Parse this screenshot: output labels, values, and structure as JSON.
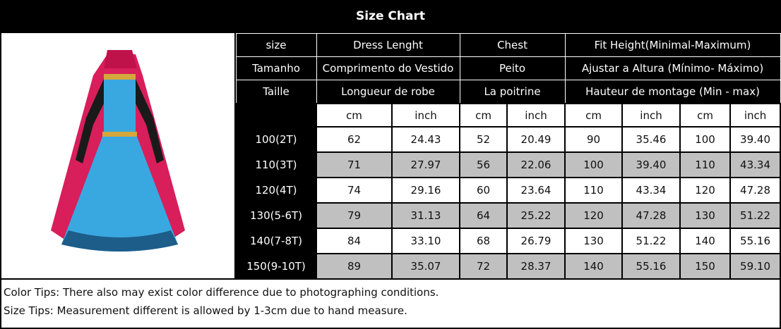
{
  "title": "Size Chart",
  "header_rows": [
    [
      "size",
      "Dress Lenght",
      "Chest",
      "Fit Height(Minimal-Maximum)"
    ],
    [
      "Tamanho",
      "Comprimento do Vestido",
      "Peito",
      "Ajustar a Altura (Mínimo- Máximo)"
    ],
    [
      "Taille",
      "Longueur de robe",
      "La poitrine",
      "Hauteur de montage (Min - max)"
    ]
  ],
  "units": [
    "cm",
    "inch",
    "cm",
    "inch",
    "cm",
    "inch",
    "cm",
    "inch"
  ],
  "rows": [
    [
      "100(2T)",
      "62",
      "24.43",
      "52",
      "20.49",
      "90",
      "35.46",
      "100",
      "39.40"
    ],
    [
      "110(3T)",
      "71",
      "27.97",
      "56",
      "22.06",
      "100",
      "39.40",
      "110",
      "43.34"
    ],
    [
      "120(4T)",
      "74",
      "29.16",
      "60",
      "23.64",
      "110",
      "43.34",
      "120",
      "47.28"
    ],
    [
      "130(5-6T)",
      "79",
      "31.13",
      "64",
      "25.22",
      "120",
      "47.28",
      "130",
      "51.22"
    ],
    [
      "140(7-8T)",
      "84",
      "33.10",
      "68",
      "26.79",
      "130",
      "51.22",
      "140",
      "55.16"
    ],
    [
      "150(9-10T)",
      "89",
      "35.07",
      "72",
      "28.37",
      "140",
      "55.16",
      "150",
      "59.10"
    ]
  ],
  "tips": [
    "Color Tips: There also may exist color difference due to photographing conditions.",
    "Size Tips: Measurement different is allowed by 1-3cm due to hand measure."
  ],
  "colors": {
    "header_bg": "#000000",
    "alt_row": "#c0c0c0",
    "dress_blue": "#3aa8e0",
    "cape_pink": "#d81e5b"
  }
}
